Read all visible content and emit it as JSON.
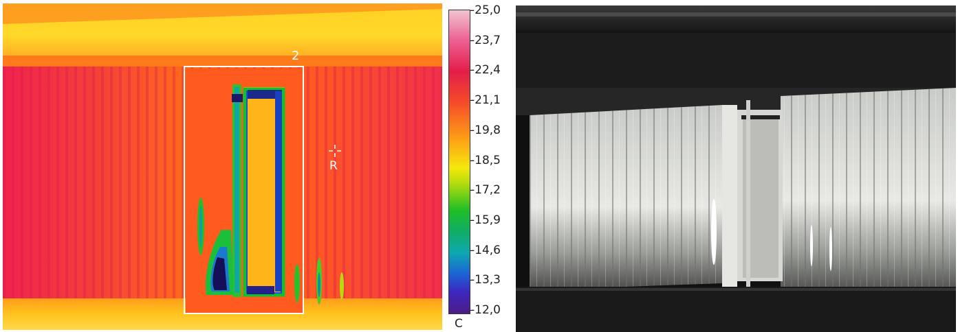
{
  "thermal": {
    "area_label": "2",
    "reference_label": "R"
  },
  "scale": {
    "unit": "C",
    "ticks": [
      "25,0",
      "23,7",
      "22,4",
      "21,1",
      "19,8",
      "18,5",
      "17,2",
      "15,9",
      "14,6",
      "13,3",
      "12,0"
    ]
  },
  "colors": {
    "scale_top": "#f0c4cf",
    "scale_bottom": "#4c1c86"
  }
}
